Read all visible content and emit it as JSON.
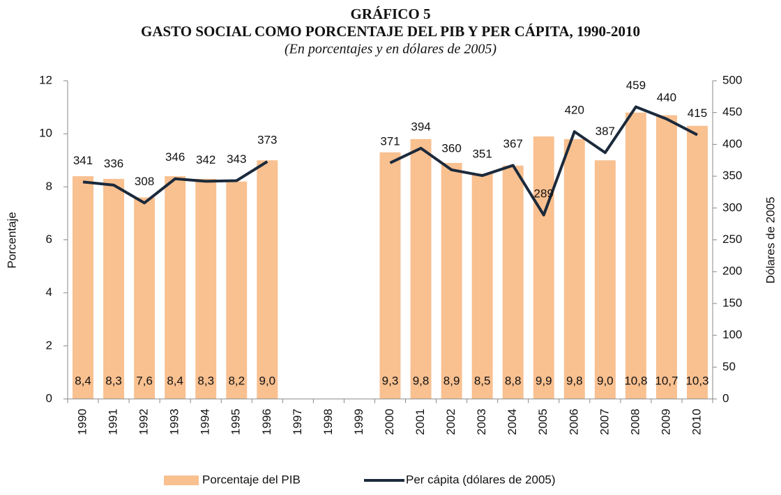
{
  "chart_data": {
    "type": "bar",
    "title": "GRÁFICO 5",
    "subtitle": "GASTO SOCIAL COMO PORCENTAJE DEL PIB Y PER CÁPITA, 1990-2010",
    "note": "(En porcentajes y en dólares de 2005)",
    "y_label": "Porcentaje",
    "y2_label": "Dólares de 2005",
    "categories": [
      "1990",
      "1991",
      "1992",
      "1993",
      "1994",
      "1995",
      "1996",
      "1997",
      "1998",
      "1999",
      "2000",
      "2001",
      "2002",
      "2003",
      "2004",
      "2005",
      "2006",
      "2007",
      "2008",
      "2009",
      "2010"
    ],
    "series": [
      {
        "name": "Porcentaje del PIB",
        "type": "bar",
        "color": "#f9c090",
        "values": [
          8.4,
          8.3,
          7.6,
          8.4,
          8.3,
          8.2,
          9.0,
          null,
          null,
          null,
          9.3,
          9.8,
          8.9,
          8.5,
          8.8,
          9.9,
          9.8,
          9.0,
          10.8,
          10.7,
          10.3
        ],
        "value_labels": [
          "8,4",
          "8,3",
          "7,6",
          "8,4",
          "8,3",
          "8,2",
          "9,0",
          null,
          null,
          null,
          "9,3",
          "9,8",
          "8,9",
          "8,5",
          "8,8",
          "9,9",
          "9,8",
          "9,0",
          "10,8",
          "10,7",
          "10,3"
        ]
      },
      {
        "name": "Per cápita (dólares de 2005)",
        "type": "line",
        "axis": "y2",
        "color": "#1b2a3b",
        "values": [
          341,
          336,
          308,
          346,
          342,
          343,
          373,
          null,
          null,
          null,
          371,
          394,
          360,
          351,
          367,
          289,
          420,
          387,
          459,
          440,
          415
        ]
      }
    ],
    "ylim": [
      0,
      12
    ],
    "yticks": [
      0,
      2,
      4,
      6,
      8,
      10,
      12
    ],
    "y2lim": [
      0,
      500
    ],
    "y2ticks": [
      0,
      50,
      100,
      150,
      200,
      250,
      300,
      350,
      400,
      450,
      500
    ]
  }
}
